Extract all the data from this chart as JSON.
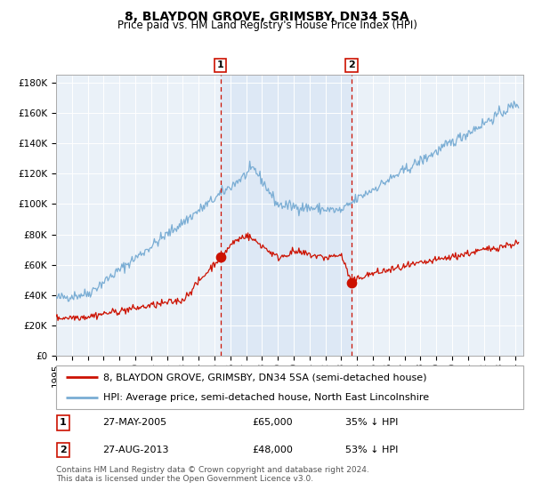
{
  "title": "8, BLAYDON GROVE, GRIMSBY, DN34 5SA",
  "subtitle": "Price paid vs. HM Land Registry's House Price Index (HPI)",
  "ylim": [
    0,
    185000
  ],
  "yticks": [
    0,
    20000,
    40000,
    60000,
    80000,
    100000,
    120000,
    140000,
    160000,
    180000
  ],
  "ytick_labels": [
    "£0",
    "£20K",
    "£40K",
    "£60K",
    "£80K",
    "£100K",
    "£120K",
    "£140K",
    "£160K",
    "£180K"
  ],
  "hpi_color": "#7aadd4",
  "price_color": "#cc1100",
  "marker_color": "#cc1100",
  "shade_color": "#dde8f5",
  "vline_color": "#cc1100",
  "sale1_date_num": 2005.38,
  "sale1_price": 65000,
  "sale2_date_num": 2013.65,
  "sale2_price": 48000,
  "legend1": "8, BLAYDON GROVE, GRIMSBY, DN34 5SA (semi-detached house)",
  "legend2": "HPI: Average price, semi-detached house, North East Lincolnshire",
  "table_row1": [
    "1",
    "27-MAY-2005",
    "£65,000",
    "35% ↓ HPI"
  ],
  "table_row2": [
    "2",
    "27-AUG-2013",
    "£48,000",
    "53% ↓ HPI"
  ],
  "footnote": "Contains HM Land Registry data © Crown copyright and database right 2024.\nThis data is licensed under the Open Government Licence v3.0.",
  "bg_color": "#ffffff",
  "plot_bg_color": "#eaf1f8",
  "grid_color": "#ffffff",
  "title_fontsize": 10,
  "subtitle_fontsize": 8.5,
  "tick_fontsize": 7.5,
  "legend_fontsize": 8,
  "table_fontsize": 8,
  "footnote_fontsize": 6.5
}
